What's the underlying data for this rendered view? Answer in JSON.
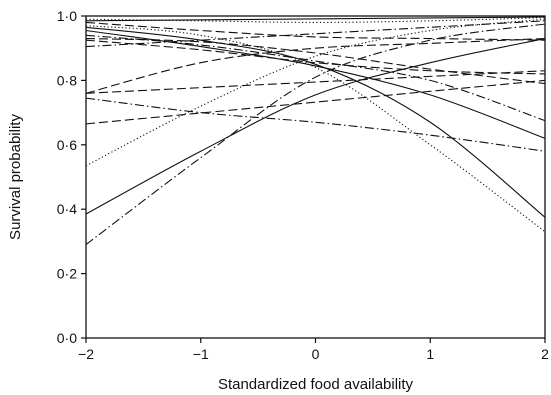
{
  "chart_data": {
    "type": "line",
    "xlabel": "Standardized food availability",
    "ylabel": "Survival probability",
    "xlim": [
      -2,
      2
    ],
    "ylim": [
      0,
      1
    ],
    "x_ticks": [
      "−2",
      "−1",
      "0",
      "1",
      "2"
    ],
    "y_ticks": [
      "0·0",
      "0·2",
      "0·4",
      "0·6",
      "0·8",
      "1·0"
    ],
    "grid": false,
    "legend": "none",
    "series": [
      {
        "style": "solid",
        "x": [
          -2,
          2
        ],
        "y": [
          0.985,
          0.997
        ]
      },
      {
        "style": "solid",
        "x": [
          -2,
          -1,
          0,
          1,
          2
        ],
        "y": [
          0.385,
          0.58,
          0.755,
          0.855,
          0.93
        ]
      },
      {
        "style": "solid",
        "x": [
          -2,
          -1,
          0,
          1,
          2
        ],
        "y": [
          0.965,
          0.925,
          0.85,
          0.67,
          0.375
        ]
      },
      {
        "style": "solid",
        "x": [
          -2,
          -1,
          0,
          1,
          2
        ],
        "y": [
          0.955,
          0.905,
          0.845,
          0.755,
          0.62
        ]
      },
      {
        "style": "dotted",
        "x": [
          -2,
          -1,
          0,
          1,
          2
        ],
        "y": [
          0.535,
          0.72,
          0.875,
          0.955,
          0.99
        ]
      },
      {
        "style": "dotted",
        "x": [
          -2,
          -1,
          0,
          1,
          2
        ],
        "y": [
          0.97,
          0.94,
          0.84,
          0.6,
          0.33
        ]
      },
      {
        "style": "dotted",
        "x": [
          -2,
          -1,
          0,
          1,
          2
        ],
        "y": [
          0.99,
          0.985,
          0.98,
          0.985,
          0.995
        ]
      },
      {
        "style": "dash-dot",
        "x": [
          -2,
          -1,
          0,
          1,
          2
        ],
        "y": [
          0.29,
          0.56,
          0.81,
          0.925,
          0.975
        ]
      },
      {
        "style": "dash-dot",
        "x": [
          -2,
          -1,
          0,
          1,
          2
        ],
        "y": [
          0.745,
          0.7,
          0.67,
          0.63,
          0.58
        ]
      },
      {
        "style": "dash-dot",
        "x": [
          -2,
          -1,
          0,
          1,
          2
        ],
        "y": [
          0.94,
          0.91,
          0.86,
          0.8,
          0.675
        ]
      },
      {
        "style": "dash-dot",
        "x": [
          -2,
          2
        ],
        "y": [
          0.905,
          0.985
        ]
      },
      {
        "style": "dashed",
        "x": [
          -2,
          -1,
          0,
          1,
          2
        ],
        "y": [
          0.76,
          0.855,
          0.9,
          0.915,
          0.93
        ]
      },
      {
        "style": "dashed",
        "x": [
          -2,
          2
        ],
        "y": [
          0.665,
          0.8
        ]
      },
      {
        "style": "dashed",
        "x": [
          -2,
          2
        ],
        "y": [
          0.76,
          0.83
        ]
      },
      {
        "style": "dashed",
        "x": [
          -2,
          -1,
          0,
          1,
          2
        ],
        "y": [
          0.98,
          0.955,
          0.935,
          0.93,
          0.925
        ]
      },
      {
        "style": "dashed",
        "x": [
          -2,
          -1,
          0,
          1,
          2
        ],
        "y": [
          0.93,
          0.92,
          0.885,
          0.835,
          0.79
        ]
      },
      {
        "style": "dashed",
        "x": [
          -2,
          -1,
          0,
          1,
          2
        ],
        "y": [
          0.925,
          0.895,
          0.855,
          0.83,
          0.82
        ]
      }
    ]
  }
}
